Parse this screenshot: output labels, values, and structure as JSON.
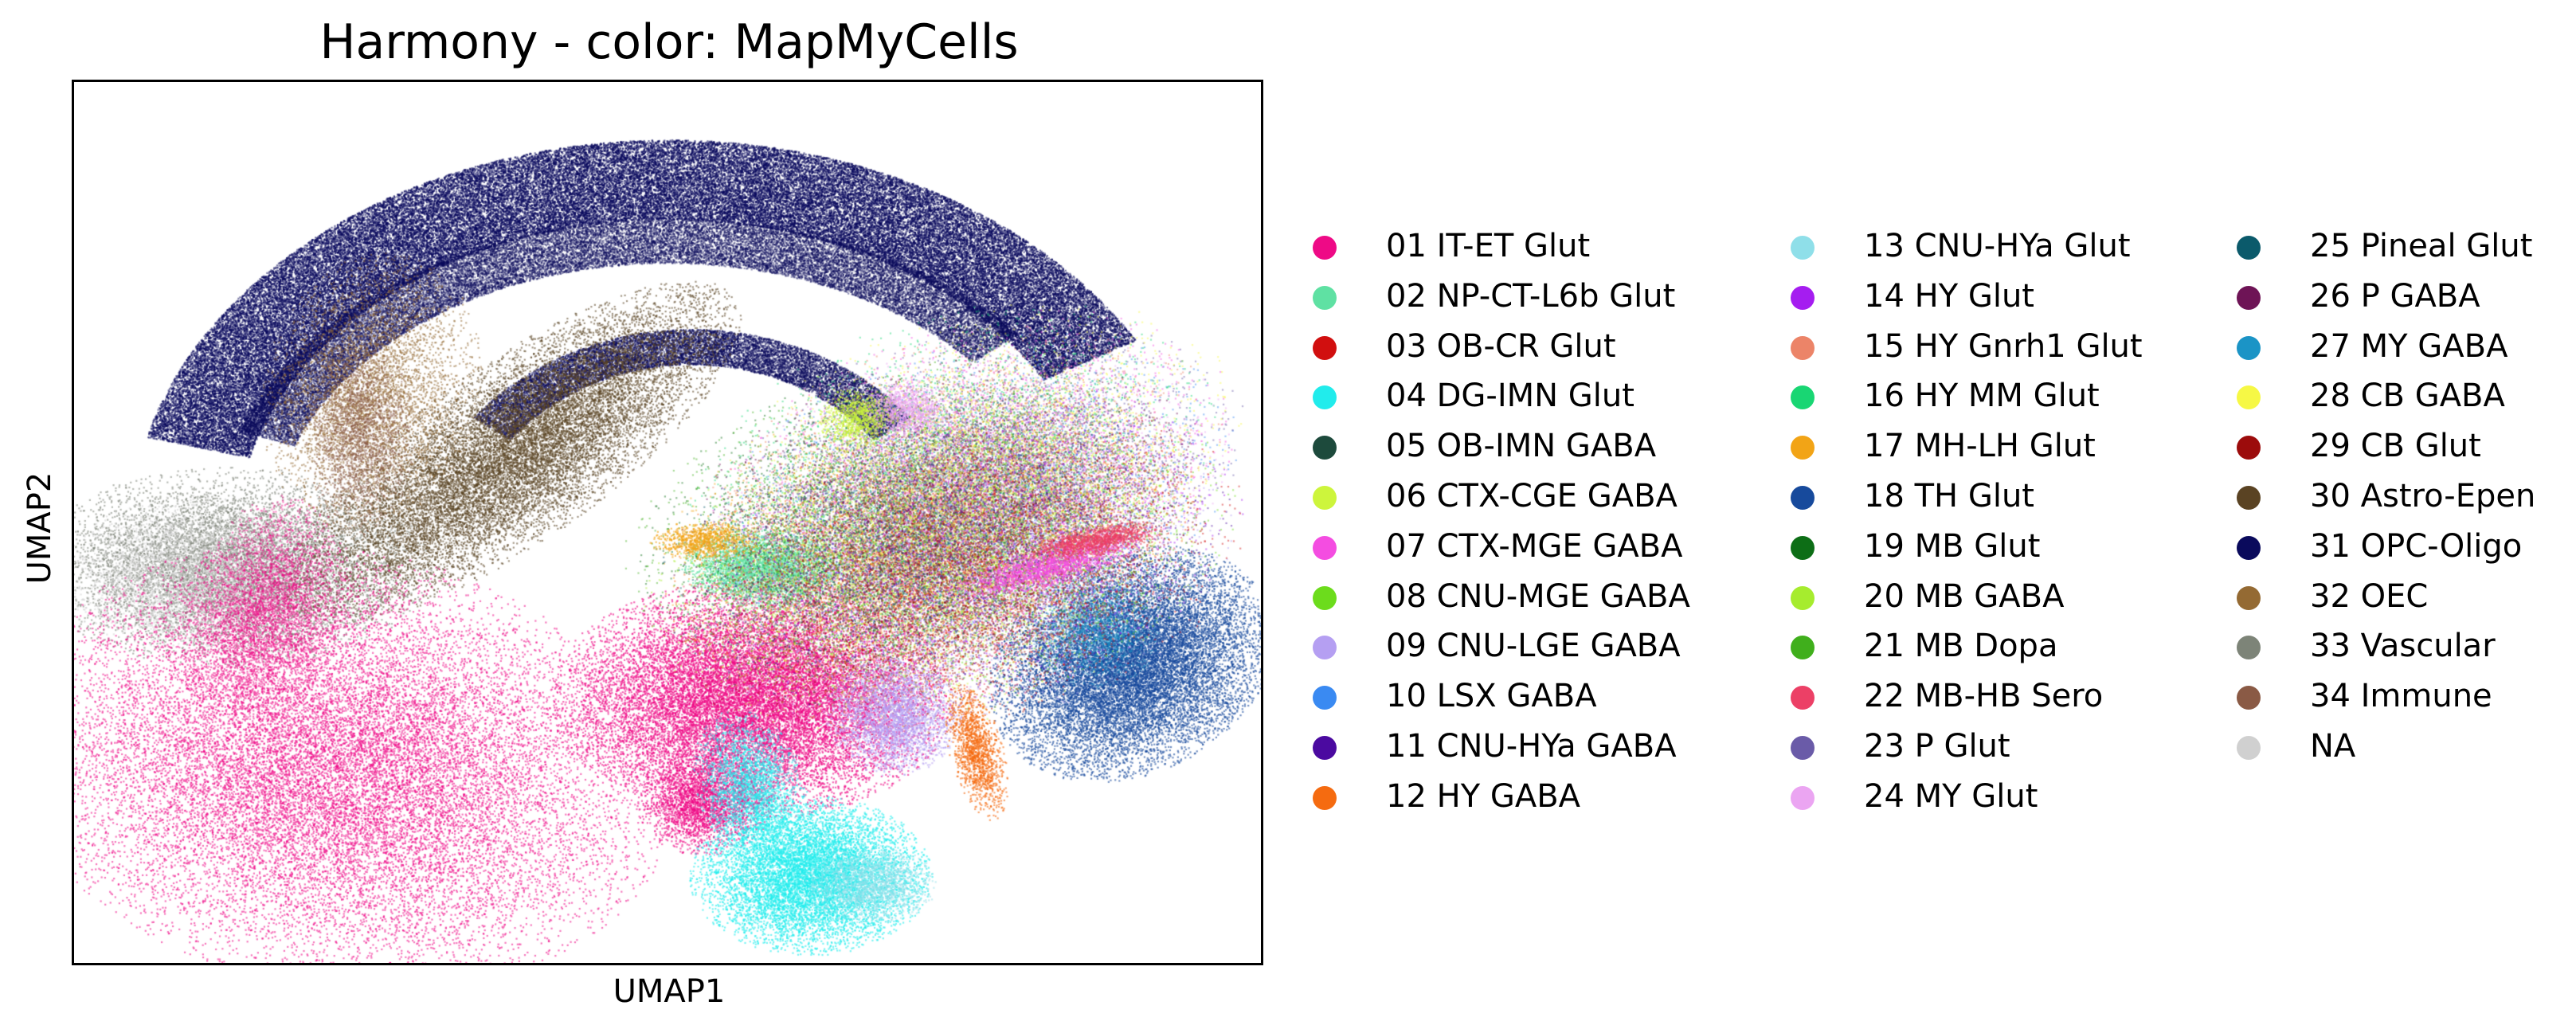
{
  "chart_data": {
    "type": "scatter",
    "title": "Harmony - color: MapMyCells",
    "xlabel": "UMAP1",
    "ylabel": "UMAP2",
    "ticks": "none",
    "grid": false,
    "legend_position": "right",
    "legend_columns": 3,
    "categories": [
      {
        "name": "01 IT-ET Glut",
        "color": "#ee0a86"
      },
      {
        "name": "02 NP-CT-L6b Glut",
        "color": "#5fe1a3"
      },
      {
        "name": "03 OB-CR Glut",
        "color": "#d10f0f"
      },
      {
        "name": "04 DG-IMN Glut",
        "color": "#21ecec"
      },
      {
        "name": "05 OB-IMN GABA",
        "color": "#1d4a3c"
      },
      {
        "name": "06 CTX-CGE GABA",
        "color": "#cdf53c"
      },
      {
        "name": "07 CTX-MGE GABA",
        "color": "#f44de1"
      },
      {
        "name": "08 CNU-MGE GABA",
        "color": "#6cdc1c"
      },
      {
        "name": "09 CNU-LGE GABA",
        "color": "#b59ff2"
      },
      {
        "name": "10 LSX GABA",
        "color": "#3a8af2"
      },
      {
        "name": "11 CNU-HYa GABA",
        "color": "#4b0aa0"
      },
      {
        "name": "12 HY GABA",
        "color": "#f56b10"
      },
      {
        "name": "13 CNU-HYa Glut",
        "color": "#8fdfe9"
      },
      {
        "name": "14 HY Glut",
        "color": "#a51df0"
      },
      {
        "name": "15 HY Gnrh1 Glut",
        "color": "#ec8468"
      },
      {
        "name": "16 HY MM Glut",
        "color": "#19d673"
      },
      {
        "name": "17 MH-LH Glut",
        "color": "#f2a416"
      },
      {
        "name": "18 TH Glut",
        "color": "#174a9c"
      },
      {
        "name": "19 MB Glut",
        "color": "#0d6e16"
      },
      {
        "name": "20 MB GABA",
        "color": "#a6ec2e"
      },
      {
        "name": "21 MB Dopa",
        "color": "#40af1c"
      },
      {
        "name": "22 MB-HB Sero",
        "color": "#ec4066"
      },
      {
        "name": "23 P Glut",
        "color": "#6a5ba8"
      },
      {
        "name": "24 MY Glut",
        "color": "#eba5f2"
      },
      {
        "name": "25 Pineal Glut",
        "color": "#0b5a6b"
      },
      {
        "name": "26 P GABA",
        "color": "#6e1456"
      },
      {
        "name": "27 MY GABA",
        "color": "#1b94c6"
      },
      {
        "name": "28 CB GABA",
        "color": "#f6f845"
      },
      {
        "name": "29 CB Glut",
        "color": "#9c0c0c"
      },
      {
        "name": "30 Astro-Epen",
        "color": "#5a4323"
      },
      {
        "name": "31 OPC-Oligo",
        "color": "#0a0a5c"
      },
      {
        "name": "32 OEC",
        "color": "#946a33"
      },
      {
        "name": "33 Vascular",
        "color": "#7d8478"
      },
      {
        "name": "34 Immune",
        "color": "#8a5a45"
      },
      {
        "name": "NA",
        "color": "#d0d0d0"
      }
    ]
  }
}
